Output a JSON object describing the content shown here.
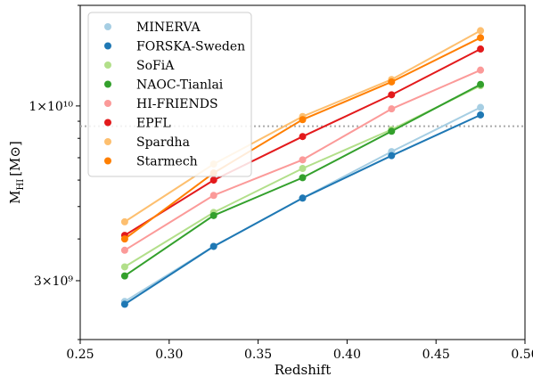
{
  "chart_data": {
    "type": "line",
    "xlabel": "Redshift",
    "ylabel_main": "M",
    "ylabel_sub": "HI",
    "ylabel_unit": "[M⊙]",
    "xlim": [
      0.25,
      0.5
    ],
    "ylim": [
      2000000000,
      20000000000
    ],
    "yscale": "log",
    "xticks": [
      0.25,
      0.3,
      0.35,
      0.4,
      0.45,
      0.5
    ],
    "xtick_labels": [
      "0.25",
      "0.30",
      "0.35",
      "0.40",
      "0.45",
      "0.50"
    ],
    "yticks": [
      3000000000,
      10000000000
    ],
    "ytick_labels": [
      "3×10⁹",
      "1×10¹⁰"
    ],
    "reference_line": {
      "y": 8700000000,
      "style": "dotted",
      "color": "#aaaaaa"
    },
    "legend_position": "top-left",
    "x": [
      0.275,
      0.325,
      0.375,
      0.425,
      0.475
    ],
    "series": [
      {
        "name": "MINERVA",
        "color": "#a6cee3",
        "values": [
          2600000000,
          3800000000,
          5300000000,
          7300000000,
          9900000000
        ]
      },
      {
        "name": "FORSKA-Sweden",
        "color": "#1f78b4",
        "values": [
          2550000000,
          3800000000,
          5300000000,
          7100000000,
          9400000000
        ]
      },
      {
        "name": "SoFiA",
        "color": "#b2df8a",
        "values": [
          3300000000,
          4800000000,
          6500000000,
          8500000000,
          11500000000
        ]
      },
      {
        "name": "NAOC-Tianlai",
        "color": "#33a02c",
        "values": [
          3100000000,
          4700000000,
          6100000000,
          8400000000,
          11600000000
        ]
      },
      {
        "name": "HI-FRIENDS",
        "color": "#fb9a99",
        "values": [
          3700000000,
          5400000000,
          6900000000,
          9800000000,
          12800000000
        ]
      },
      {
        "name": "EPFL",
        "color": "#e31a1c",
        "values": [
          4100000000,
          6000000000,
          8100000000,
          10800000000,
          14800000000
        ]
      },
      {
        "name": "Spardha",
        "color": "#fdbf6f",
        "values": [
          4500000000,
          6700000000,
          9300000000,
          12000000000,
          16800000000
        ]
      },
      {
        "name": "Starmech",
        "color": "#ff7f00",
        "values": [
          4000000000,
          6300000000,
          9100000000,
          11800000000,
          16000000000
        ]
      }
    ]
  }
}
